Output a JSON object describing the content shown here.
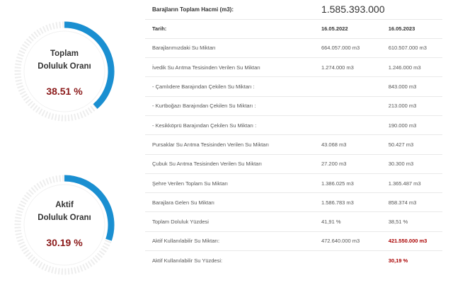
{
  "gauges": {
    "total": {
      "label_line1": "Toplam",
      "label_line2": "Doluluk Oranı",
      "value_text": "38.51 %",
      "fraction": 0.3851
    },
    "active": {
      "label_line1": "Aktif",
      "label_line2": "Doluluk Oranı",
      "value_text": "30.19 %",
      "fraction": 0.3019
    }
  },
  "colors": {
    "arc": "#1a8fd1",
    "track": "#ededed",
    "value": "#8b1a1a",
    "highlight": "#aa0000"
  },
  "table": {
    "header_label": "Barajların Toplam Hacmi (m3):",
    "header_value": "1.585.393.000",
    "date_label": "Tarih:",
    "date_1": "16.05.2022",
    "date_2": "16.05.2023",
    "rows": [
      {
        "label": "Barajlarımızdaki Su Miktarı",
        "v1": "664.057.000 m3",
        "v2": "610.507.000 m3"
      },
      {
        "label": "İvedik Su Arıtma Tesisinden Verilen Su Miktarı",
        "v1": "1.274.000 m3",
        "v2": "1.246.000 m3"
      },
      {
        "label": "- Çamlıdere Barajından Çekilen Su Miktarı :",
        "v1": "",
        "v2": "843.000 m3"
      },
      {
        "label": "- Kurtboğazı Barajından Çekilen Su Miktarı :",
        "v1": "",
        "v2": "213.000 m3"
      },
      {
        "label": "- Kesikköprü Barajından Çekilen Su Miktarı :",
        "v1": "",
        "v2": "190.000 m3"
      },
      {
        "label": "Pursaklar Su Arıtma Tesisinden Verilen Su Miktarı",
        "v1": "43.068 m3",
        "v2": "50.427 m3"
      },
      {
        "label": "Çubuk Su Arıtma Tesisinden Verilen Su Miktarı",
        "v1": "27.200 m3",
        "v2": "30.300 m3"
      },
      {
        "label": "Şehre Verilen Toplam Su Miktarı",
        "v1": "1.386.025 m3",
        "v2": "1.365.487 m3"
      },
      {
        "label": "Barajlara Gelen Su Miktarı",
        "v1": "1.586.783 m3",
        "v2": "858.374 m3"
      },
      {
        "label": "Toplam Doluluk Yüzdesi",
        "v1": "41,91 %",
        "v2": "38,51 %"
      },
      {
        "label": "Aktif Kullanılabilir Su Miktarı:",
        "v1": "472.640.000 m3",
        "v2": "421.550.000 m3",
        "highlight": true
      },
      {
        "label": "Aktif Kullanılabilir Su Yüzdesi:",
        "v1": "",
        "v2": "30,19 %",
        "highlight": true
      }
    ]
  }
}
